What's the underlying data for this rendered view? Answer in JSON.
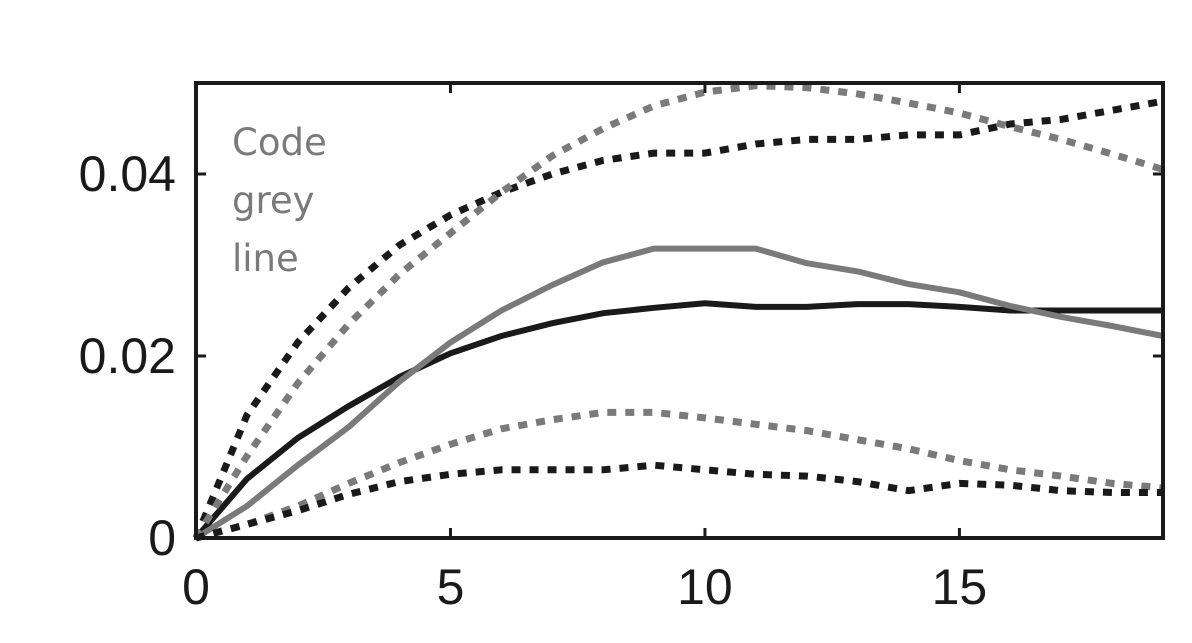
{
  "chart_data": {
    "type": "line",
    "title": "",
    "xlabel": "",
    "ylabel": "",
    "xlim": [
      0,
      19
    ],
    "ylim": [
      0,
      0.05
    ],
    "xticks": [
      0,
      5,
      10,
      15
    ],
    "xtick_labels": [
      "0",
      "5",
      "10",
      "15"
    ],
    "yticks": [
      0,
      0.02,
      0.04
    ],
    "ytick_labels": [
      "0",
      "0.02",
      "0.04"
    ],
    "grid": false,
    "annotation": {
      "lines": [
        "Code",
        "grey",
        "line"
      ],
      "color": "#7a7a7a"
    },
    "series": [
      {
        "color": "#1a1a1a",
        "style": "solid",
        "x": [
          0,
          1,
          2,
          3,
          4,
          5,
          6,
          7,
          8,
          9,
          10,
          11,
          12,
          13,
          14,
          15,
          16,
          17,
          18,
          19
        ],
        "y": [
          0,
          0.0065,
          0.011,
          0.0145,
          0.0177,
          0.0203,
          0.0222,
          0.0236,
          0.0247,
          0.0253,
          0.0258,
          0.0254,
          0.0254,
          0.0257,
          0.0257,
          0.0254,
          0.025,
          0.025,
          0.025,
          0.025
        ]
      },
      {
        "color": "#7a7a7a",
        "style": "solid",
        "x": [
          0,
          1,
          2,
          3,
          4,
          5,
          6,
          7,
          8,
          9,
          10,
          11,
          12,
          13,
          14,
          15,
          16,
          17,
          18,
          19
        ],
        "y": [
          0,
          0.0035,
          0.008,
          0.0122,
          0.0172,
          0.0215,
          0.025,
          0.0278,
          0.0303,
          0.0318,
          0.0318,
          0.0318,
          0.0302,
          0.0293,
          0.0279,
          0.027,
          0.0255,
          0.0243,
          0.0233,
          0.0222
        ]
      },
      {
        "color": "#1a1a1a",
        "style": "dotted",
        "x": [
          0,
          1,
          2,
          3,
          4,
          5,
          6,
          7,
          8,
          9,
          10,
          11,
          12,
          13,
          14,
          15,
          16,
          17,
          18,
          19
        ],
        "y": [
          0,
          0.0135,
          0.0215,
          0.0275,
          0.0322,
          0.0355,
          0.038,
          0.04,
          0.0415,
          0.0423,
          0.0423,
          0.0433,
          0.0438,
          0.0438,
          0.0443,
          0.0443,
          0.0455,
          0.046,
          0.047,
          0.048
        ]
      },
      {
        "color": "#7a7a7a",
        "style": "dotted",
        "x": [
          0,
          1,
          2,
          3,
          4,
          5,
          6,
          7,
          8,
          9,
          10,
          11,
          12,
          13,
          14,
          15,
          16,
          17,
          18,
          19
        ],
        "y": [
          0,
          0.009,
          0.017,
          0.0235,
          0.029,
          0.0335,
          0.038,
          0.042,
          0.045,
          0.0475,
          0.049,
          0.0497,
          0.0495,
          0.0488,
          0.0478,
          0.0467,
          0.0452,
          0.0438,
          0.0422,
          0.0405
        ]
      },
      {
        "color": "#7a7a7a",
        "style": "dotted",
        "x": [
          0,
          1,
          2,
          3,
          4,
          5,
          6,
          7,
          8,
          9,
          10,
          11,
          12,
          13,
          14,
          15,
          16,
          17,
          18,
          19
        ],
        "y": [
          0,
          0.0015,
          0.0035,
          0.006,
          0.0083,
          0.0103,
          0.012,
          0.013,
          0.0138,
          0.0138,
          0.0132,
          0.0125,
          0.0118,
          0.0108,
          0.0098,
          0.0085,
          0.0075,
          0.0068,
          0.006,
          0.0055
        ]
      },
      {
        "color": "#1a1a1a",
        "style": "dotted",
        "x": [
          0,
          1,
          2,
          3,
          4,
          5,
          6,
          7,
          8,
          9,
          10,
          11,
          12,
          13,
          14,
          15,
          16,
          17,
          18,
          19
        ],
        "y": [
          0,
          0.0015,
          0.003,
          0.0048,
          0.0062,
          0.007,
          0.0075,
          0.0075,
          0.0075,
          0.008,
          0.0075,
          0.007,
          0.0068,
          0.0062,
          0.0052,
          0.006,
          0.0058,
          0.0052,
          0.005,
          0.005
        ]
      }
    ]
  }
}
